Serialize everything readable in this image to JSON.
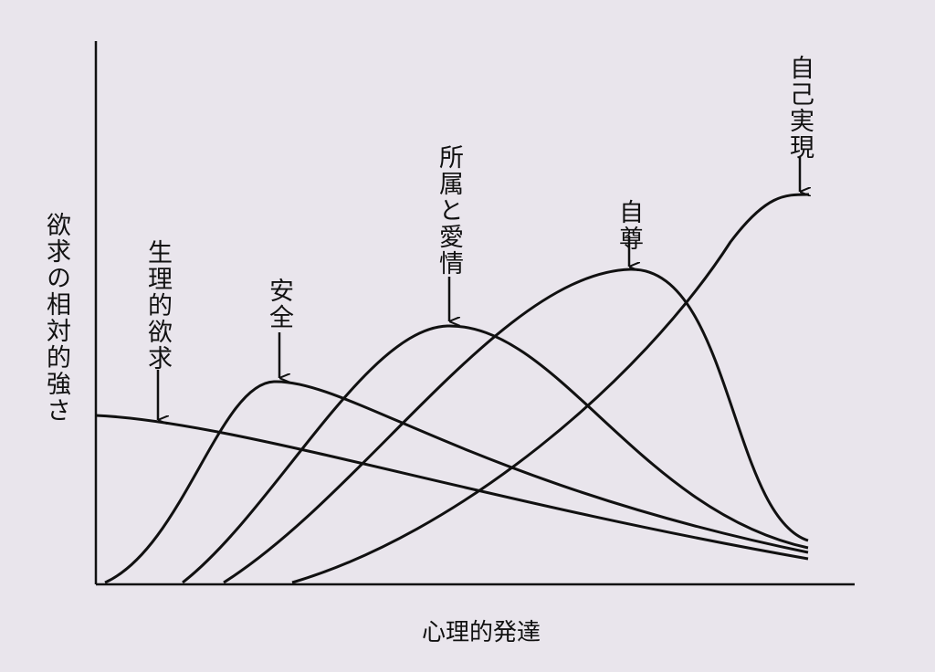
{
  "y_axis_label": "欲求の相対的強さ",
  "x_axis_label": "心理的発達",
  "curve_labels": [
    "生理的欲求",
    "安全",
    "所属と愛情",
    "自尊",
    "自己実現"
  ]
}
